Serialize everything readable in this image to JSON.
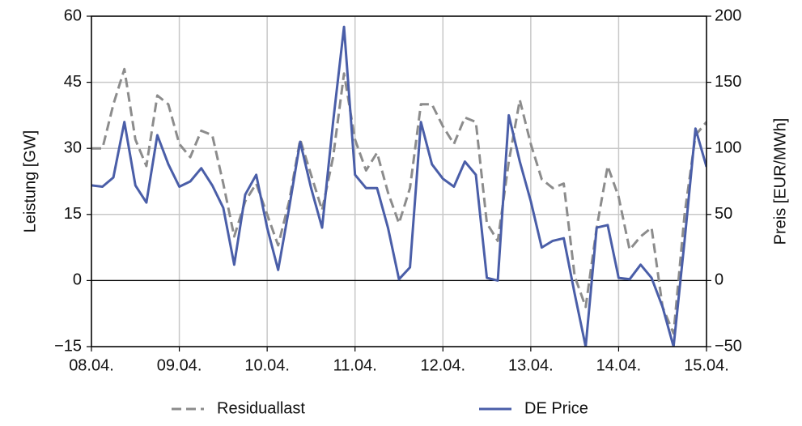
{
  "chart_data": {
    "type": "line",
    "x": [
      0,
      3,
      6,
      9,
      12,
      15,
      18,
      21,
      24,
      27,
      30,
      33,
      36,
      39,
      42,
      45,
      48,
      51,
      54,
      57,
      60,
      63,
      66,
      69,
      72,
      75,
      78,
      81,
      84,
      87,
      90,
      93,
      96,
      99,
      102,
      105,
      108,
      111,
      114,
      117,
      120,
      123,
      126,
      129,
      132,
      135,
      138,
      141,
      144,
      147,
      150,
      153,
      156,
      159,
      162,
      165,
      168
    ],
    "xlim": [
      0,
      168
    ],
    "xticks": [
      {
        "value": 0,
        "label": "08.04."
      },
      {
        "value": 24,
        "label": "09.04."
      },
      {
        "value": 48,
        "label": "10.04."
      },
      {
        "value": 72,
        "label": "11.04."
      },
      {
        "value": 96,
        "label": "12.04."
      },
      {
        "value": 120,
        "label": "13.04."
      },
      {
        "value": 144,
        "label": "14.04."
      },
      {
        "value": 168,
        "label": "15.04."
      }
    ],
    "ylabel": "Leistung [GW]",
    "y2label": "Preis [EUR/MWh]",
    "ylim": [
      -15,
      60
    ],
    "yticks": [
      {
        "value": -15,
        "label": "−15"
      },
      0,
      15,
      30,
      45,
      60
    ],
    "y2lim": [
      -50,
      200
    ],
    "y2ticks": [
      {
        "value": -50,
        "label": "−50"
      },
      0,
      50,
      100,
      150,
      200
    ],
    "grid": true,
    "series": [
      {
        "name": "Residuallast",
        "color": "#8c8c8c",
        "dashed": true,
        "values": [
          30,
          30,
          40,
          48,
          32,
          26,
          42,
          40,
          31,
          28,
          34,
          33,
          22,
          10,
          18,
          22,
          15,
          8,
          18,
          32,
          24,
          16,
          28,
          47,
          32,
          25,
          29,
          20,
          13,
          21,
          40,
          40,
          35,
          31,
          37,
          36,
          13,
          9,
          27,
          41,
          31,
          23,
          21,
          22,
          1,
          -6,
          12,
          26,
          19,
          7,
          10,
          12,
          -6,
          -12,
          15,
          33,
          36
        ]
      },
      {
        "name": "DE Price",
        "color": "#4a5ea8",
        "axis": "y2",
        "values": [
          72,
          71,
          78,
          120,
          72,
          59,
          110,
          88,
          71,
          75,
          85,
          72,
          55,
          12,
          65,
          80,
          40,
          8,
          55,
          105,
          70,
          40,
          120,
          192,
          80,
          70,
          70,
          40,
          1,
          10,
          120,
          88,
          77,
          71,
          90,
          80,
          2,
          0,
          125,
          90,
          60,
          25,
          30,
          32,
          -10,
          -50,
          40,
          42,
          2,
          1,
          12,
          2,
          -20,
          -50,
          30,
          115,
          86
        ]
      }
    ]
  }
}
